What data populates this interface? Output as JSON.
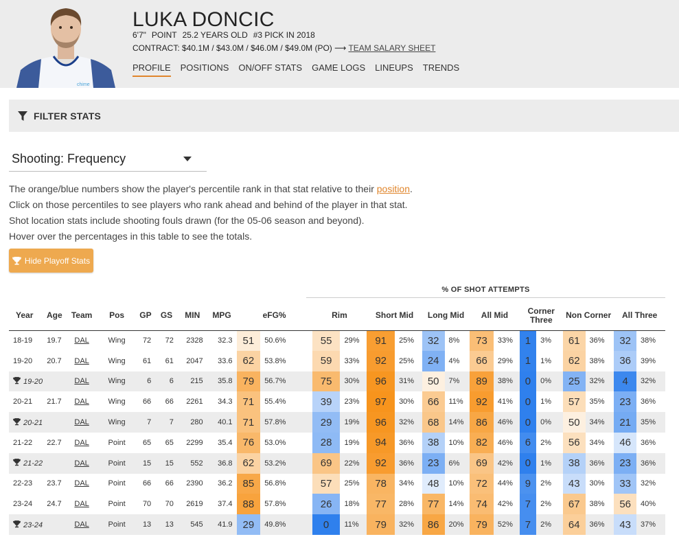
{
  "player": {
    "name": "LUKA DONCIC",
    "height": "6'7\"",
    "position": "POINT",
    "age": "25.2 YEARS OLD",
    "pick": "#3 PICK IN 2018",
    "contract_label": "CONTRACT:",
    "contract_values": "$40.1M / $43.0M / $46.0M / $49.0M (PO)",
    "contract_arrow": "⟶",
    "salary_link": "TEAM SALARY SHEET"
  },
  "nav": {
    "tabs": [
      "PROFILE",
      "POSITIONS",
      "ON/OFF STATS",
      "GAME LOGS",
      "LINEUPS",
      "TRENDS"
    ],
    "active": "PROFILE"
  },
  "filter": {
    "label": "FILTER STATS"
  },
  "stat_select": {
    "value": "Shooting: Frequency"
  },
  "notes": {
    "line1_pre": "The orange/blue numbers show the player's percentile rank in that stat relative to their ",
    "line1_link": "position",
    "line1_post": ".",
    "line2": "Click on those percentiles to see players who rank ahead and behind of the player in that stat.",
    "line3": "Shot location stats include shooting fouls drawn (for the 05-06 season and beyond).",
    "line4": "Hover over the percentages in this table to see the totals."
  },
  "playoff_button": {
    "label": "Hide Playoff Stats"
  },
  "table": {
    "group_header": "% OF SHOT ATTEMPTS",
    "columns": [
      "Year",
      "Age",
      "Team",
      "Pos",
      "GP",
      "GS",
      "MIN",
      "MPG",
      "eFG%",
      "Rim",
      "Short Mid",
      "Long Mid",
      "All Mid",
      "Corner Three",
      "Non Corner",
      "All Three"
    ],
    "rows": [
      {
        "year": "18-19",
        "age": "19.7",
        "team": "DAL",
        "pos": "Wing",
        "gp": "72",
        "gs": "72",
        "min": "2328",
        "mpg": "32.3",
        "playoff": false,
        "stats": [
          [
            "51",
            "50.6%"
          ],
          [
            "55",
            "29%"
          ],
          [
            "91",
            "25%"
          ],
          [
            "32",
            "8%"
          ],
          [
            "73",
            "33%"
          ],
          [
            "1",
            "3%"
          ],
          [
            "61",
            "36%"
          ],
          [
            "32",
            "38%"
          ]
        ]
      },
      {
        "year": "19-20",
        "age": "20.7",
        "team": "DAL",
        "pos": "Wing",
        "gp": "61",
        "gs": "61",
        "min": "2047",
        "mpg": "33.6",
        "playoff": false,
        "stats": [
          [
            "62",
            "53.8%"
          ],
          [
            "59",
            "33%"
          ],
          [
            "92",
            "25%"
          ],
          [
            "24",
            "4%"
          ],
          [
            "66",
            "29%"
          ],
          [
            "1",
            "1%"
          ],
          [
            "62",
            "38%"
          ],
          [
            "36",
            "39%"
          ]
        ]
      },
      {
        "year": "19-20",
        "age": "",
        "team": "DAL",
        "pos": "Wing",
        "gp": "6",
        "gs": "6",
        "min": "215",
        "mpg": "35.8",
        "playoff": true,
        "stats": [
          [
            "79",
            "56.7%"
          ],
          [
            "75",
            "30%"
          ],
          [
            "96",
            "31%"
          ],
          [
            "50",
            "7%"
          ],
          [
            "89",
            "38%"
          ],
          [
            "0",
            "0%"
          ],
          [
            "25",
            "32%"
          ],
          [
            "4",
            "32%"
          ]
        ]
      },
      {
        "year": "20-21",
        "age": "21.7",
        "team": "DAL",
        "pos": "Wing",
        "gp": "66",
        "gs": "66",
        "min": "2261",
        "mpg": "34.3",
        "playoff": false,
        "stats": [
          [
            "71",
            "55.4%"
          ],
          [
            "39",
            "23%"
          ],
          [
            "97",
            "30%"
          ],
          [
            "66",
            "11%"
          ],
          [
            "92",
            "41%"
          ],
          [
            "0",
            "1%"
          ],
          [
            "57",
            "35%"
          ],
          [
            "23",
            "36%"
          ]
        ]
      },
      {
        "year": "20-21",
        "age": "",
        "team": "DAL",
        "pos": "Wing",
        "gp": "7",
        "gs": "7",
        "min": "280",
        "mpg": "40.1",
        "playoff": true,
        "stats": [
          [
            "71",
            "57.8%"
          ],
          [
            "29",
            "19%"
          ],
          [
            "96",
            "32%"
          ],
          [
            "68",
            "14%"
          ],
          [
            "86",
            "46%"
          ],
          [
            "0",
            "0%"
          ],
          [
            "50",
            "34%"
          ],
          [
            "21",
            "35%"
          ]
        ]
      },
      {
        "year": "21-22",
        "age": "22.7",
        "team": "DAL",
        "pos": "Point",
        "gp": "65",
        "gs": "65",
        "min": "2299",
        "mpg": "35.4",
        "playoff": false,
        "stats": [
          [
            "76",
            "53.0%"
          ],
          [
            "28",
            "19%"
          ],
          [
            "94",
            "36%"
          ],
          [
            "38",
            "10%"
          ],
          [
            "82",
            "46%"
          ],
          [
            "6",
            "2%"
          ],
          [
            "56",
            "34%"
          ],
          [
            "46",
            "36%"
          ]
        ]
      },
      {
        "year": "21-22",
        "age": "",
        "team": "DAL",
        "pos": "Point",
        "gp": "15",
        "gs": "15",
        "min": "552",
        "mpg": "36.8",
        "playoff": true,
        "stats": [
          [
            "62",
            "53.2%"
          ],
          [
            "69",
            "22%"
          ],
          [
            "92",
            "36%"
          ],
          [
            "23",
            "6%"
          ],
          [
            "69",
            "42%"
          ],
          [
            "0",
            "1%"
          ],
          [
            "38",
            "36%"
          ],
          [
            "23",
            "36%"
          ]
        ]
      },
      {
        "year": "22-23",
        "age": "23.7",
        "team": "DAL",
        "pos": "Point",
        "gp": "66",
        "gs": "66",
        "min": "2390",
        "mpg": "36.2",
        "playoff": false,
        "stats": [
          [
            "85",
            "56.8%"
          ],
          [
            "57",
            "25%"
          ],
          [
            "78",
            "34%"
          ],
          [
            "48",
            "10%"
          ],
          [
            "72",
            "44%"
          ],
          [
            "9",
            "2%"
          ],
          [
            "43",
            "30%"
          ],
          [
            "33",
            "32%"
          ]
        ]
      },
      {
        "year": "23-24",
        "age": "24.7",
        "team": "DAL",
        "pos": "Point",
        "gp": "70",
        "gs": "70",
        "min": "2619",
        "mpg": "37.4",
        "playoff": false,
        "stats": [
          [
            "88",
            "57.8%"
          ],
          [
            "26",
            "18%"
          ],
          [
            "77",
            "28%"
          ],
          [
            "77",
            "14%"
          ],
          [
            "74",
            "42%"
          ],
          [
            "7",
            "2%"
          ],
          [
            "67",
            "38%"
          ],
          [
            "56",
            "40%"
          ]
        ]
      },
      {
        "year": "23-24",
        "age": "",
        "team": "DAL",
        "pos": "Point",
        "gp": "13",
        "gs": "13",
        "min": "545",
        "mpg": "41.9",
        "playoff": true,
        "stats": [
          [
            "29",
            "49.8%"
          ],
          [
            "0",
            "11%"
          ],
          [
            "79",
            "32%"
          ],
          [
            "86",
            "20%"
          ],
          [
            "79",
            "52%"
          ],
          [
            "7",
            "2%"
          ],
          [
            "64",
            "36%"
          ],
          [
            "43",
            "37%"
          ]
        ]
      }
    ]
  },
  "colors": {
    "accent": "#e0852b",
    "header_bg": "#ececec",
    "button_bg": "#eea94f",
    "high_percentile": "#f7941d",
    "low_percentile": "#2f80ed"
  }
}
